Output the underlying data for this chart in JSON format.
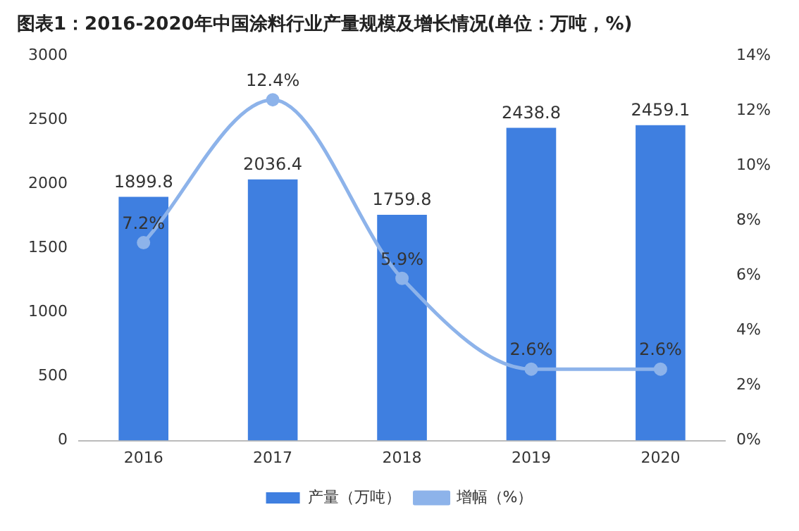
{
  "chart_data": {
    "type": "bar",
    "title": "图表1：2016-2020年中国涂料行业产量规模及增长情况(单位：万吨，%)",
    "categories": [
      "2016",
      "2017",
      "2018",
      "2019",
      "2020"
    ],
    "series": [
      {
        "name": "产量（万吨）",
        "color": "#3f7fe0",
        "values": [
          1899.8,
          2036.4,
          1759.8,
          2438.8,
          2459.1
        ],
        "value_labels": [
          "1899.8",
          "2036.4",
          "1759.8",
          "2438.8",
          "2459.1"
        ]
      },
      {
        "name": "增幅（%）",
        "type": "line",
        "axis": "y2",
        "color": "#8db3ea",
        "values": [
          7.2,
          12.4,
          5.9,
          2.6,
          2.6
        ],
        "value_labels": [
          "7.2%",
          "12.4%",
          "5.9%",
          "2.6%",
          "2.6%"
        ],
        "marker": "circle"
      }
    ],
    "ylim": [
      0,
      3000
    ],
    "yticks": [
      0,
      500,
      1000,
      1500,
      2000,
      2500,
      3000
    ],
    "y2lim": [
      0,
      14
    ],
    "y2ticks": [
      {
        "value": 0,
        "label": "0%"
      },
      {
        "value": 2,
        "label": "2%"
      },
      {
        "value": 4,
        "label": "4%"
      },
      {
        "value": 6,
        "label": "6%"
      },
      {
        "value": 8,
        "label": "8%"
      },
      {
        "value": 10,
        "label": "10%"
      },
      {
        "value": 12,
        "label": "12%"
      },
      {
        "value": 14,
        "label": "14%"
      }
    ],
    "grid": false,
    "legend": "bottom"
  }
}
